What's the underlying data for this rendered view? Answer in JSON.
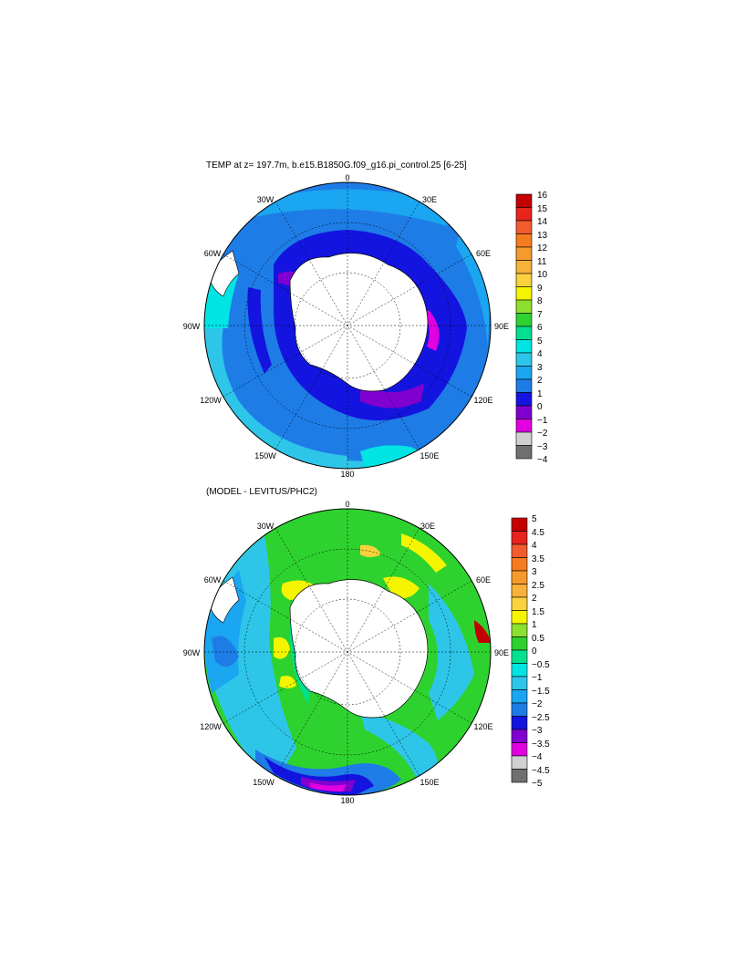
{
  "panels": [
    {
      "id": "top",
      "title": "TEMP at z= 197.7m, b.e15.B1850G.f09_g16.pi_control.25 [6-25]",
      "lon_labels": [
        "0",
        "30E",
        "60E",
        "90E",
        "120E",
        "150E",
        "180",
        "150W",
        "120W",
        "90W",
        "60W",
        "30W"
      ],
      "colorbar": {
        "labels": [
          "16",
          "15",
          "14",
          "13",
          "12",
          "11",
          "10",
          "9",
          "8",
          "7",
          "6",
          "5",
          "4",
          "3",
          "2",
          "1",
          "0",
          "−1",
          "−2",
          "−3",
          "−4"
        ],
        "colors": [
          "#c40000",
          "#e8241e",
          "#f25c2e",
          "#f57c1e",
          "#f59a2c",
          "#f7b23a",
          "#f9d23e",
          "#f5f500",
          "#8de02e",
          "#2ed22e",
          "#00e090",
          "#00e4e4",
          "#2ec6e8",
          "#1aa6f0",
          "#1e7ce6",
          "#1414e0",
          "#8000d0",
          "#e000e0",
          "#d0d0d0",
          "#707070"
        ]
      }
    },
    {
      "id": "bottom",
      "title": "(MODEL - LEVITUS/PHC2)",
      "lon_labels": [
        "0",
        "30E",
        "60E",
        "90E",
        "120E",
        "150E",
        "180",
        "150W",
        "120W",
        "90W",
        "60W",
        "30W"
      ],
      "colorbar": {
        "labels": [
          "5",
          "4.5",
          "4",
          "3.5",
          "3",
          "2.5",
          "2",
          "1.5",
          "1",
          "0.5",
          "0",
          "−0.5",
          "−1",
          "−1.5",
          "−2",
          "−2.5",
          "−3",
          "−3.5",
          "−4",
          "−4.5",
          "−5"
        ],
        "colors": [
          "#c40000",
          "#e8241e",
          "#f25c2e",
          "#f57c1e",
          "#f59a2c",
          "#f7b23a",
          "#f9d23e",
          "#f5f500",
          "#8de02e",
          "#2ed22e",
          "#00e090",
          "#00e4e4",
          "#2ec6e8",
          "#1aa6f0",
          "#1e7ce6",
          "#1414e0",
          "#8000d0",
          "#e000e0",
          "#d0d0d0",
          "#707070"
        ]
      }
    }
  ]
}
